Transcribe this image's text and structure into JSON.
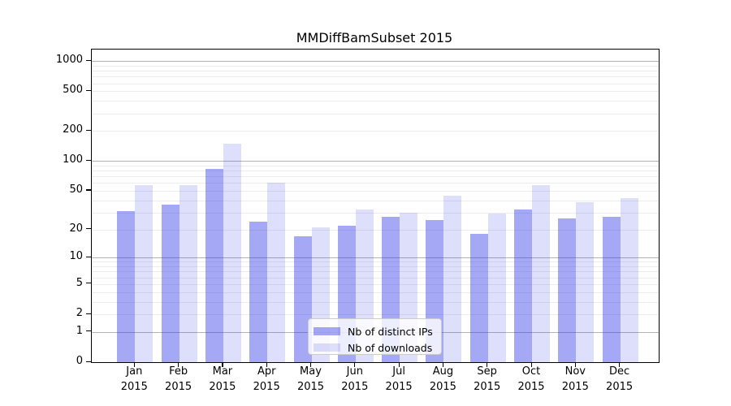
{
  "chart_data": {
    "type": "bar",
    "title": "MMDiffBamSubset 2015",
    "categories": [
      "Jan",
      "Feb",
      "Mar",
      "Apr",
      "May",
      "Jun",
      "Jul",
      "Aug",
      "Sep",
      "Oct",
      "Nov",
      "Dec"
    ],
    "x_tick_year_line": "2015",
    "series": [
      {
        "name": "Nb of distinct IPs",
        "color": "rgba(50,56,230,0.44)",
        "values": [
          31,
          36,
          83,
          24,
          17,
          22,
          27,
          25,
          18,
          32,
          26,
          27
        ]
      },
      {
        "name": "Nb of downloads",
        "color": "rgba(50,56,230,0.16)",
        "values": [
          57,
          57,
          150,
          60,
          21,
          32,
          30,
          45,
          29,
          57,
          38,
          42
        ]
      }
    ],
    "y_ticks": [
      0,
      1,
      2,
      5,
      10,
      20,
      50,
      100,
      200,
      500,
      1000
    ],
    "y_scale": "log1p",
    "y_range_top": 1350,
    "grid": true,
    "grid_major_at": [
      1,
      10,
      100,
      1000
    ],
    "legend_position": "lower center",
    "colors": {
      "grid_major": "#b3b3b3",
      "grid_minor": "#ececec",
      "axis": "#000000",
      "text": "#000000"
    }
  }
}
